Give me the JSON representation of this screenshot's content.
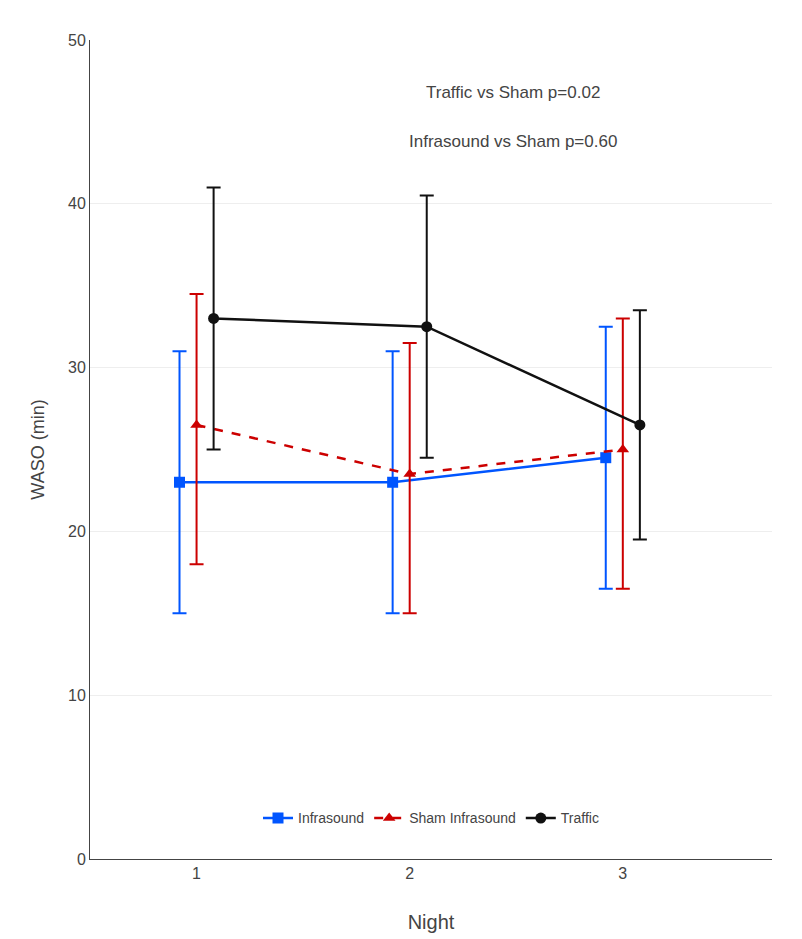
{
  "chart_data": {
    "type": "line",
    "annotations": [
      "Traffic vs Sham p=0.02",
      "Infrasound vs Sham p=0.60"
    ],
    "xlabel": "Night",
    "ylabel": "WASO (min)",
    "x": [
      1,
      2,
      3
    ],
    "xlim": [
      0.5,
      3.7
    ],
    "xticks": [
      1,
      2,
      3
    ],
    "ylim": [
      0,
      50
    ],
    "yticks": [
      0,
      10,
      20,
      30,
      40,
      50
    ],
    "grid": true,
    "legend": "lower center",
    "series": [
      {
        "name": "Infrasound",
        "color": "#0055FF",
        "marker": "square",
        "line_style": "solid",
        "values": [
          23.0,
          23.0,
          24.5
        ],
        "err_up": [
          8.0,
          8.0,
          8.0
        ],
        "err_lo": [
          8.0,
          8.0,
          8.0
        ]
      },
      {
        "name": "Sham Infrasound",
        "color": "#CC0000",
        "marker": "triangle-up",
        "line_style": "dash",
        "values": [
          26.5,
          23.5,
          25.0
        ],
        "err_up": [
          8.0,
          8.0,
          8.0
        ],
        "err_lo": [
          8.5,
          8.5,
          8.5
        ]
      },
      {
        "name": "Traffic",
        "color": "#111111",
        "marker": "circle",
        "line_style": "solid",
        "values": [
          33.0,
          32.5,
          26.5
        ],
        "err_up": [
          8.0,
          8.0,
          7.0
        ],
        "err_lo": [
          8.0,
          8.0,
          7.0
        ]
      }
    ]
  }
}
